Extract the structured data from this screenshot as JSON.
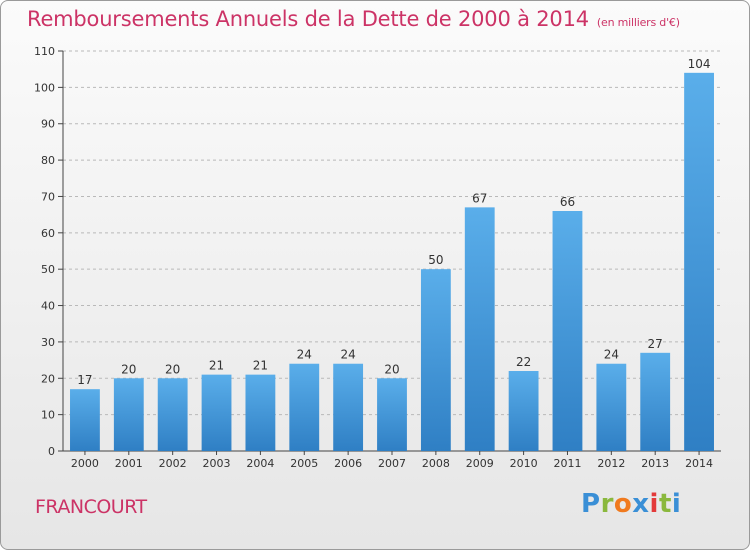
{
  "header": {
    "title": "Remboursements Annuels de la Dette de 2000 à 2014",
    "subtitle": "(en milliers d'€)"
  },
  "footer": {
    "commune": "FRANCOURT",
    "brand_letters": [
      "P",
      "r",
      "o",
      "x",
      "i",
      "t",
      "i"
    ],
    "brand_colors": [
      "#3a8fd6",
      "#8ab83d",
      "#f07a1e",
      "#3a8fd6",
      "#e33a3a",
      "#8ab83d",
      "#3a8fd6"
    ]
  },
  "colors": {
    "bar_light": "#5aaeea",
    "bar_dark": "#2f7fc4",
    "title": "#cc3366",
    "grid": "#b9b9b9"
  },
  "chart_data": {
    "type": "bar",
    "title": "Remboursements Annuels de la Dette de 2000 à 2014",
    "subtitle": "(en milliers d'€)",
    "xlabel": "",
    "ylabel": "",
    "categories": [
      "2000",
      "2001",
      "2002",
      "2003",
      "2004",
      "2005",
      "2006",
      "2007",
      "2008",
      "2009",
      "2010",
      "2011",
      "2012",
      "2013",
      "2014"
    ],
    "values": [
      17,
      20,
      20,
      21,
      21,
      24,
      24,
      20,
      50,
      67,
      22,
      66,
      24,
      27,
      104
    ],
    "ylim": [
      0,
      110
    ],
    "yticks": [
      0,
      10,
      20,
      30,
      40,
      50,
      60,
      70,
      80,
      90,
      100,
      110
    ],
    "grid": true,
    "data_labels": true
  }
}
